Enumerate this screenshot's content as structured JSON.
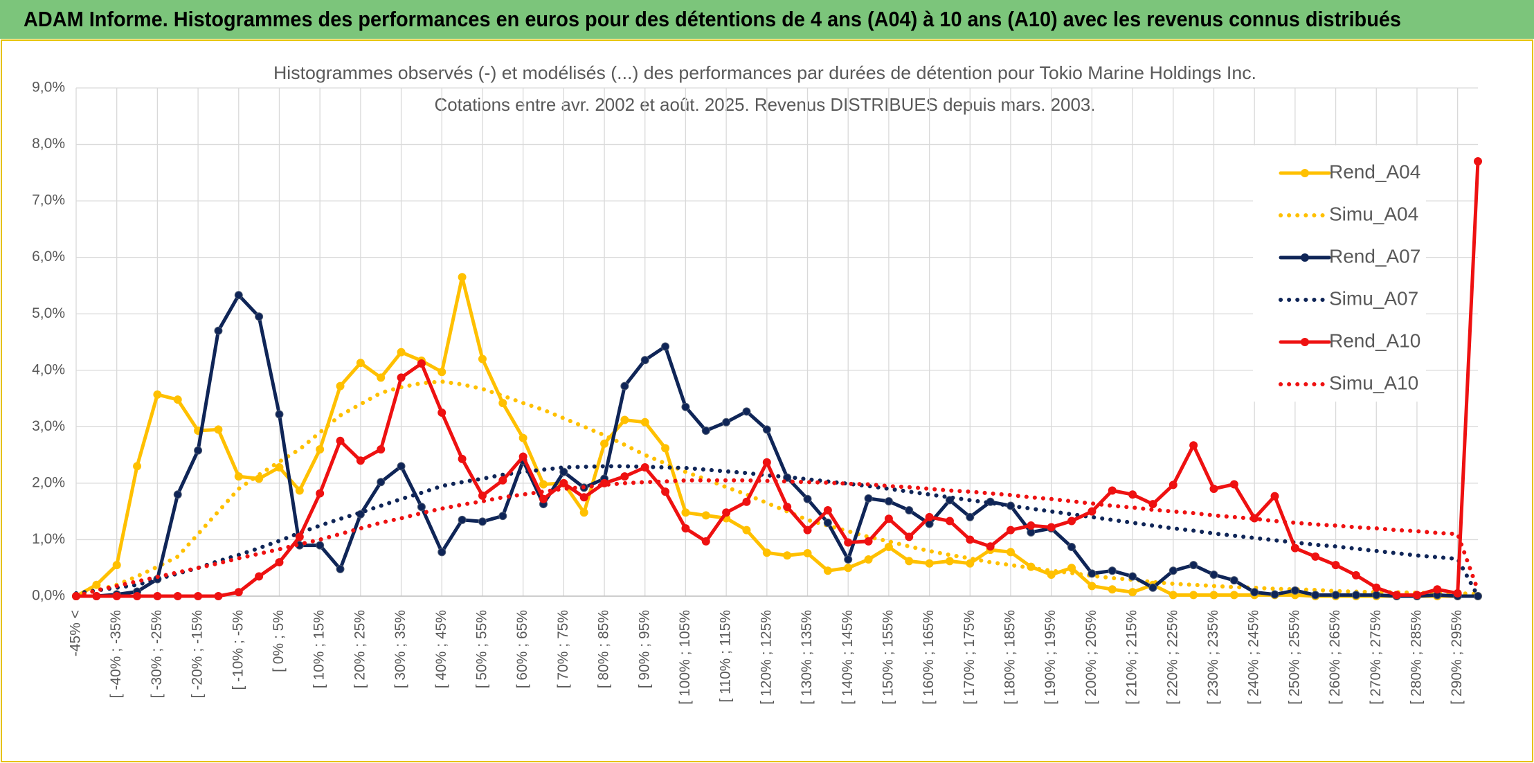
{
  "chart_data": {
    "type": "line",
    "title": "ADAM Informe. Histogrammes des performances en euros pour des détentions de 4 ans (A04) à 10 ans (A10) avec les revenus connus distribués",
    "subtitle": [
      "Histogrammes observés (-) et modélisés (...) des performances par durées de détention pour Tokio Marine Holdings Inc.",
      "Cotations entre avr. 2002 et août. 2025. Revenus DISTRIBUES depuis mars. 2003."
    ],
    "categories": [
      "-45% <",
      null,
      "[ -40% ; -35%",
      null,
      "[ -30% ; -25%",
      null,
      "[ -20% ; -15%",
      null,
      "[ -10% ; -5%",
      null,
      "[ 0% ; 5%",
      null,
      "[ 10% ; 15%",
      null,
      "[ 20% ; 25%",
      null,
      "[ 30% ; 35%",
      null,
      "[ 40% ; 45%",
      null,
      "[ 50% ; 55%",
      null,
      "[ 60% ; 65%",
      null,
      "[ 70% ; 75%",
      null,
      "[ 80% ; 85%",
      null,
      "[ 90% ; 95%",
      null,
      "[ 100% ; 105%",
      null,
      "[ 110% ; 115%",
      null,
      "[ 120% ; 125%",
      null,
      "[ 130% ; 135%",
      null,
      "[ 140% ; 145%",
      null,
      "[ 150% ; 155%",
      null,
      "[ 160% ; 165%",
      null,
      "[ 170% ; 175%",
      null,
      "[ 180% ; 185%",
      null,
      "[ 190% ; 195%",
      null,
      "[ 200% ; 205%",
      null,
      "[ 210% ; 215%",
      null,
      "[ 220% ; 225%",
      null,
      "[ 230% ; 235%",
      null,
      "[ 240% ; 245%",
      null,
      "[ 250% ; 255%",
      null,
      "[ 260% ; 265%",
      null,
      "[ 270% ; 275%",
      null,
      "[ 280% ; 285%",
      null,
      "[ 290% ; 295%",
      null
    ],
    "ylim": [
      0,
      9
    ],
    "yticks": [
      {
        "value": 0,
        "label": "0,0%"
      },
      {
        "value": 1,
        "label": "1,0%"
      },
      {
        "value": 2,
        "label": "2,0%"
      },
      {
        "value": 3,
        "label": "3,0%"
      },
      {
        "value": 4,
        "label": "4,0%"
      },
      {
        "value": 5,
        "label": "5,0%"
      },
      {
        "value": 6,
        "label": "6,0%"
      },
      {
        "value": 7,
        "label": "7,0%"
      },
      {
        "value": 8,
        "label": "8,0%"
      },
      {
        "value": 9,
        "label": "9,0%"
      }
    ],
    "grid": true,
    "legend": "right",
    "series": [
      {
        "name": "Rend_A04",
        "color": "#ffc000",
        "dotted": false,
        "values": [
          0,
          0.2,
          0.55,
          2.3,
          3.57,
          3.48,
          2.93,
          2.95,
          2.12,
          2.08,
          2.28,
          1.87,
          2.6,
          3.72,
          4.13,
          3.87,
          4.32,
          4.17,
          3.97,
          5.65,
          4.2,
          3.42,
          2.8,
          1.98,
          2.0,
          1.48,
          2.7,
          3.12,
          3.08,
          2.62,
          1.48,
          1.43,
          1.38,
          1.17,
          0.77,
          0.72,
          0.76,
          0.45,
          0.5,
          0.65,
          0.87,
          0.62,
          0.58,
          0.62,
          0.58,
          0.82,
          0.78,
          0.52,
          0.38,
          0.5,
          0.18,
          0.12,
          0.07,
          0.2,
          0.02,
          0.02,
          0.02,
          0.02,
          0.02,
          0.02,
          0.02,
          0,
          0,
          0,
          0,
          0,
          0,
          0,
          0,
          0
        ]
      },
      {
        "name": "Simu_A04",
        "color": "#ffc000",
        "dotted": true,
        "values": [
          0,
          0.1,
          0.2,
          0.35,
          0.52,
          0.7,
          1.1,
          1.5,
          1.9,
          2.15,
          2.38,
          2.6,
          2.9,
          3.2,
          3.4,
          3.6,
          3.7,
          3.77,
          3.8,
          3.75,
          3.67,
          3.55,
          3.42,
          3.3,
          3.15,
          3.0,
          2.85,
          2.68,
          2.5,
          2.35,
          2.2,
          2.07,
          1.93,
          1.8,
          1.65,
          1.5,
          1.35,
          1.25,
          1.15,
          1.05,
          0.97,
          0.88,
          0.8,
          0.73,
          0.67,
          0.6,
          0.55,
          0.5,
          0.45,
          0.41,
          0.36,
          0.32,
          0.29,
          0.25,
          0.22,
          0.2,
          0.18,
          0.16,
          0.15,
          0.13,
          0.12,
          0.11,
          0.09,
          0.08,
          0.07,
          0.07,
          0.06,
          0.05,
          0.05,
          0.04
        ]
      },
      {
        "name": "Rend_A07",
        "color": "#0f2557",
        "dotted": false,
        "values": [
          0,
          0,
          0.03,
          0.08,
          0.3,
          1.8,
          2.58,
          4.7,
          5.33,
          4.95,
          3.22,
          0.9,
          0.9,
          0.48,
          1.45,
          2.02,
          2.3,
          1.58,
          0.78,
          1.35,
          1.32,
          1.42,
          2.4,
          1.63,
          2.2,
          1.92,
          2.08,
          3.72,
          4.18,
          4.42,
          3.35,
          2.93,
          3.08,
          3.27,
          2.95,
          2.1,
          1.72,
          1.3,
          0.65,
          1.73,
          1.68,
          1.52,
          1.28,
          1.7,
          1.4,
          1.67,
          1.6,
          1.13,
          1.2,
          0.87,
          0.4,
          0.45,
          0.35,
          0.15,
          0.45,
          0.55,
          0.38,
          0.28,
          0.07,
          0.03,
          0.1,
          0.02,
          0.02,
          0.02,
          0.02,
          0,
          0,
          0.02,
          0,
          0
        ]
      },
      {
        "name": "Simu_A07",
        "color": "#0f2557",
        "dotted": true,
        "values": [
          0.05,
          0.1,
          0.15,
          0.2,
          0.3,
          0.4,
          0.5,
          0.62,
          0.73,
          0.85,
          0.98,
          1.12,
          1.25,
          1.37,
          1.48,
          1.6,
          1.72,
          1.83,
          1.95,
          2.02,
          2.08,
          2.15,
          2.2,
          2.24,
          2.28,
          2.29,
          2.3,
          2.3,
          2.29,
          2.28,
          2.27,
          2.24,
          2.21,
          2.18,
          2.14,
          2.11,
          2.07,
          2.03,
          1.99,
          1.95,
          1.9,
          1.85,
          1.8,
          1.75,
          1.7,
          1.65,
          1.6,
          1.55,
          1.5,
          1.45,
          1.4,
          1.35,
          1.3,
          1.25,
          1.2,
          1.16,
          1.11,
          1.07,
          1.03,
          0.99,
          0.95,
          0.91,
          0.88,
          0.84,
          0.8,
          0.76,
          0.72,
          0.69,
          0.66,
          0
        ]
      },
      {
        "name": "Rend_A10",
        "color": "#ee1111",
        "dotted": false,
        "values": [
          0,
          0,
          0,
          0,
          0,
          0,
          0,
          0,
          0.07,
          0.35,
          0.6,
          1.05,
          1.82,
          2.75,
          2.4,
          2.6,
          3.87,
          4.12,
          3.25,
          2.43,
          1.78,
          2.05,
          2.47,
          1.72,
          2.0,
          1.75,
          2.0,
          2.12,
          2.28,
          1.85,
          1.2,
          0.97,
          1.48,
          1.67,
          2.37,
          1.58,
          1.17,
          1.52,
          0.95,
          0.97,
          1.37,
          1.05,
          1.4,
          1.33,
          1.0,
          0.88,
          1.17,
          1.25,
          1.22,
          1.33,
          1.5,
          1.87,
          1.8,
          1.63,
          1.97,
          2.67,
          1.9,
          1.98,
          1.38,
          1.77,
          0.85,
          0.7,
          0.55,
          0.37,
          0.15,
          0.02,
          0.02,
          0.12,
          0.05,
          7.7
        ]
      },
      {
        "name": "Simu_A10",
        "color": "#ee1111",
        "dotted": true,
        "values": [
          0,
          0.1,
          0.18,
          0.26,
          0.34,
          0.42,
          0.5,
          0.58,
          0.67,
          0.75,
          0.83,
          0.92,
          1.0,
          1.1,
          1.2,
          1.3,
          1.38,
          1.47,
          1.55,
          1.62,
          1.68,
          1.75,
          1.8,
          1.85,
          1.9,
          1.93,
          1.97,
          2.0,
          2.02,
          2.03,
          2.05,
          2.05,
          2.05,
          2.05,
          2.04,
          2.03,
          2.02,
          2.01,
          1.99,
          1.98,
          1.95,
          1.93,
          1.9,
          1.87,
          1.85,
          1.82,
          1.79,
          1.75,
          1.72,
          1.68,
          1.64,
          1.6,
          1.57,
          1.53,
          1.5,
          1.47,
          1.43,
          1.4,
          1.37,
          1.33,
          1.3,
          1.27,
          1.25,
          1.22,
          1.2,
          1.17,
          1.15,
          1.12,
          1.1,
          0.1
        ]
      }
    ]
  }
}
